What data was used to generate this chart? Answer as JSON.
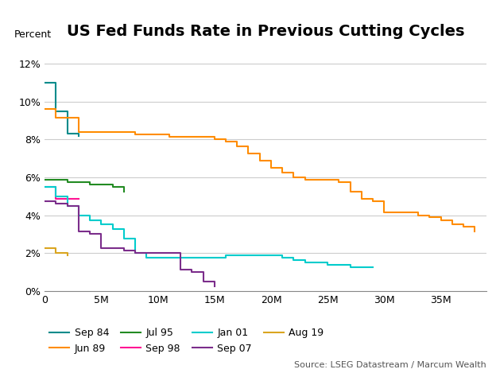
{
  "title": "US Fed Funds Rate in Previous Cutting Cycles",
  "ylabel": "Percent",
  "source": "Source: LSEG Datastream / Marcum Wealth",
  "xlim": [
    0,
    39
  ],
  "ylim": [
    0,
    0.13
  ],
  "xticks": [
    0,
    5,
    10,
    15,
    20,
    25,
    30,
    35
  ],
  "yticks": [
    0,
    0.02,
    0.04,
    0.06,
    0.08,
    0.1,
    0.12
  ],
  "series": [
    {
      "label": "Sep 84",
      "color": "#008B8B",
      "x": [
        0,
        1,
        2,
        3
      ],
      "y": [
        0.11,
        0.095,
        0.083,
        0.082
      ]
    },
    {
      "label": "Jun 89",
      "color": "#FF8C00",
      "x": [
        0,
        1,
        2,
        3,
        4,
        5,
        6,
        7,
        8,
        9,
        10,
        11,
        12,
        13,
        14,
        15,
        16,
        17,
        18,
        19,
        20,
        21,
        22,
        23,
        24,
        25,
        26,
        27,
        28,
        29,
        30,
        31,
        32,
        33,
        34,
        35,
        36,
        37,
        38
      ],
      "y": [
        0.0963,
        0.0913,
        0.0913,
        0.0838,
        0.0838,
        0.0838,
        0.0838,
        0.0838,
        0.0825,
        0.0825,
        0.0825,
        0.0813,
        0.0813,
        0.0813,
        0.0813,
        0.08,
        0.0788,
        0.0763,
        0.0725,
        0.0688,
        0.065,
        0.0625,
        0.06,
        0.0588,
        0.0588,
        0.0588,
        0.0575,
        0.0525,
        0.0488,
        0.0475,
        0.0413,
        0.0413,
        0.0413,
        0.04,
        0.0388,
        0.0375,
        0.035,
        0.0338,
        0.0313
      ]
    },
    {
      "label": "Jul 95",
      "color": "#228B22",
      "x": [
        0,
        1,
        2,
        3,
        4,
        5,
        6,
        7
      ],
      "y": [
        0.0588,
        0.0588,
        0.0575,
        0.0575,
        0.0563,
        0.0563,
        0.055,
        0.0525
      ]
    },
    {
      "label": "Sep 98",
      "color": "#FF1493",
      "x": [
        0,
        1,
        2,
        3
      ],
      "y": [
        0.055,
        0.0488,
        0.0488,
        0.0488
      ]
    },
    {
      "label": "Jan 01",
      "color": "#00CCCC",
      "x": [
        0,
        1,
        2,
        3,
        4,
        5,
        6,
        7,
        8,
        9,
        10,
        11,
        12,
        13,
        14,
        15,
        16,
        17,
        18,
        19,
        20,
        21,
        22,
        23,
        24,
        25,
        26,
        27,
        28,
        29
      ],
      "y": [
        0.055,
        0.05,
        0.045,
        0.04,
        0.0375,
        0.035,
        0.0325,
        0.0275,
        0.02,
        0.0175,
        0.0175,
        0.0175,
        0.0175,
        0.0175,
        0.0175,
        0.0175,
        0.0188,
        0.0188,
        0.0188,
        0.0188,
        0.0188,
        0.0175,
        0.0163,
        0.015,
        0.015,
        0.0138,
        0.0138,
        0.0125,
        0.0125,
        0.0125
      ]
    },
    {
      "label": "Sep 07",
      "color": "#7B2D8B",
      "x": [
        0,
        1,
        2,
        3,
        4,
        5,
        6,
        7,
        8,
        9,
        10,
        11,
        12,
        13,
        14,
        15
      ],
      "y": [
        0.0475,
        0.0463,
        0.045,
        0.0313,
        0.03,
        0.0225,
        0.0225,
        0.0213,
        0.02,
        0.02,
        0.02,
        0.02,
        0.0113,
        0.01,
        0.005,
        0.0025
      ]
    },
    {
      "label": "Aug 19",
      "color": "#DAA520",
      "x": [
        0,
        1,
        2
      ],
      "y": [
        0.0225,
        0.02,
        0.0188
      ]
    }
  ],
  "legend_row1": [
    "Sep 84",
    "Jun 89",
    "Jul 95",
    "Sep 98"
  ],
  "legend_row2": [
    "Jan 01",
    "Sep 07",
    "Aug 19"
  ],
  "background_color": "#ffffff",
  "grid_color": "#cccccc",
  "title_fontsize": 14,
  "label_fontsize": 9,
  "tick_fontsize": 9,
  "legend_fontsize": 9,
  "source_fontsize": 8
}
